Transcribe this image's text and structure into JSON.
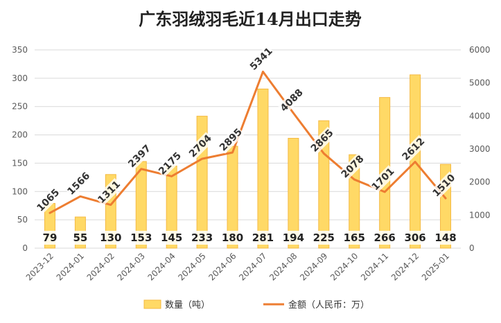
{
  "chart_data": {
    "type": "bar+line",
    "title": "广东羽绒羽毛近14月出口走势",
    "categories": [
      "2023-12",
      "2024-01",
      "2024-02",
      "2024-03",
      "2024-04",
      "2024-05",
      "2024-06",
      "2024-07",
      "2024-08",
      "2024-09",
      "2024-10",
      "2024-11",
      "2024-12",
      "2025-01"
    ],
    "series": [
      {
        "name": "数量（吨）",
        "type": "bar",
        "axis": "left",
        "color": "#FFD966",
        "values": [
          79,
          55,
          130,
          153,
          145,
          233,
          180,
          281,
          194,
          225,
          165,
          266,
          306,
          148
        ]
      },
      {
        "name": "金额（人民币：万）",
        "type": "line",
        "axis": "right",
        "color": "#ED7D31",
        "values": [
          1065,
          1566,
          1311,
          2397,
          2175,
          2704,
          2895,
          5341,
          4088,
          2865,
          2078,
          1701,
          2612,
          1510
        ]
      }
    ],
    "y_left": {
      "min": 0,
      "max": 350,
      "ticks": [
        "0",
        "50",
        "100",
        "150",
        "200",
        "250",
        "300",
        "350"
      ]
    },
    "y_right": {
      "min": 0,
      "max": 6000,
      "ticks": [
        "0",
        "1000",
        "2000",
        "3000",
        "4000",
        "5000",
        "6000"
      ]
    },
    "grid": true,
    "legend_position": "bottom"
  }
}
